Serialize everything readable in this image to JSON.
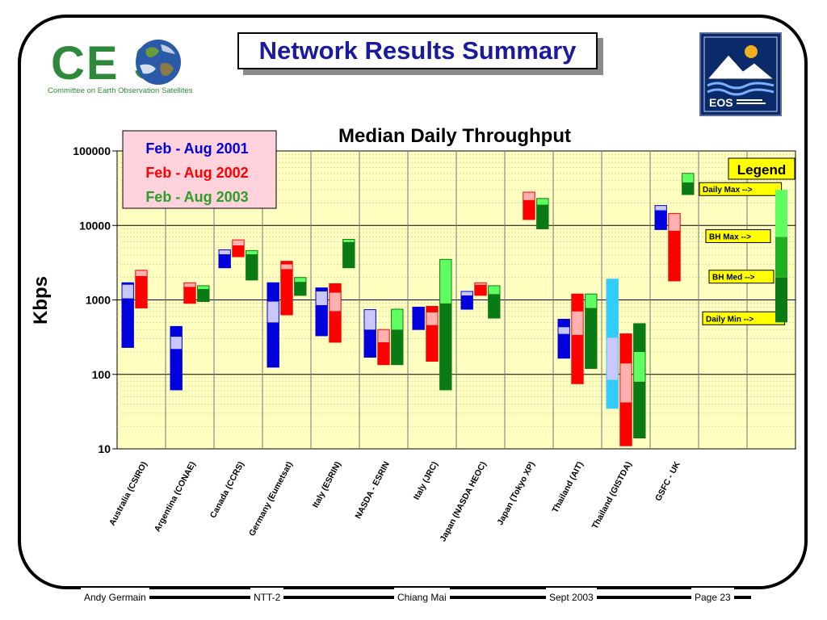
{
  "slide": {
    "title": "Network Results Summary",
    "logo_left_text": "CE   S",
    "logo_left_subtitle": "Committee on Earth Observation Satellites",
    "logo_right_text": "EOS"
  },
  "footer": {
    "author": "Andy Germain",
    "project": "NTT-2",
    "location": "Chiang Mai",
    "date": "Sept 2003",
    "page": "Page 23"
  },
  "colors": {
    "plot_bg": "#ffffc0",
    "blue": "#0000dd",
    "blue_light": "#c8c8ff",
    "red": "#ff0000",
    "red_light": "#ffb0b0",
    "green": "#0a7a14",
    "green_light": "#60ff60",
    "cyan": "#33ccff",
    "legend_box": "#ffff00",
    "dates_box": "#ffd2dc"
  },
  "chart_data": {
    "type": "bar",
    "title": "Median Daily Throughput",
    "ylabel": "Kbps",
    "yscale": "log",
    "ylim": [
      10,
      100000
    ],
    "yticks": [
      "10",
      "100",
      "1000",
      "10000",
      "100000"
    ],
    "grid": true,
    "categories": [
      "Australia (CSIRO)",
      "Argentina (CONAE)",
      "Canada (CCRS)",
      "Germany (Eumetsat)",
      "Italy (ESRIN)",
      "NASDA - ESRIN",
      "Italy (JRC)",
      "Japan (NASDA HEOC)",
      "Japan (Tokyo XP)",
      "Thailand (AIT)",
      "Thailand (GISTDA)",
      "GSFC - UK"
    ],
    "series": [
      {
        "name": "Feb - Aug 2001",
        "color": "#0000dd",
        "boxes": [
          {
            "min": 230,
            "bh_med": 1050,
            "bh_max": 1600,
            "max": 1700
          },
          {
            "min": 62,
            "bh_med": 220,
            "bh_max": 320,
            "max": 440
          },
          {
            "min": 2700,
            "bh_med": 4100,
            "bh_max": 4700,
            "max": 4700
          },
          {
            "min": 125,
            "bh_med": 500,
            "bh_max": 950,
            "max": 1700
          },
          {
            "min": 330,
            "bh_med": 850,
            "bh_max": 1300,
            "max": 1450
          },
          {
            "min": 170,
            "bh_med": 400,
            "bh_max": 740,
            "max": 740
          },
          {
            "min": 400,
            "bh_med": 800,
            "bh_max": 800,
            "max": 800
          },
          {
            "min": 750,
            "bh_med": 1150,
            "bh_max": 1300,
            "max": 1300
          },
          null,
          {
            "min": 165,
            "bh_med": 350,
            "bh_max": 430,
            "max": 550
          },
          {
            "min": 35,
            "bh_med": 85,
            "bh_max": 310,
            "max": 1900,
            "color": "#33ccff"
          },
          {
            "min": 8800,
            "bh_med": 16000,
            "bh_max": 18500,
            "max": 18500
          }
        ]
      },
      {
        "name": "Feb - Aug 2002",
        "color": "#ff0000",
        "boxes": [
          {
            "min": 780,
            "bh_med": 2100,
            "bh_max": 2500,
            "max": 2500
          },
          {
            "min": 900,
            "bh_med": 1500,
            "bh_max": 1700,
            "max": 1700
          },
          {
            "min": 3800,
            "bh_med": 5400,
            "bh_max": 6400,
            "max": 6400
          },
          {
            "min": 630,
            "bh_med": 2600,
            "bh_max": 3000,
            "max": 3300
          },
          {
            "min": 270,
            "bh_med": 710,
            "bh_max": 1250,
            "max": 1650
          },
          {
            "min": 135,
            "bh_med": 270,
            "bh_max": 400,
            "max": 400
          },
          {
            "min": 150,
            "bh_med": 460,
            "bh_max": 680,
            "max": 820
          },
          {
            "min": 1150,
            "bh_med": 1600,
            "bh_max": 1700,
            "max": 1700
          },
          {
            "min": 12000,
            "bh_med": 22000,
            "bh_max": 28000,
            "max": 28000
          },
          {
            "min": 75,
            "bh_med": 340,
            "bh_max": 700,
            "max": 1200
          },
          {
            "min": 11,
            "bh_med": 42,
            "bh_max": 140,
            "max": 350
          },
          {
            "min": 1800,
            "bh_med": 8500,
            "bh_max": 14500,
            "max": 14500
          }
        ]
      },
      {
        "name": "Feb - Aug 2003",
        "color": "#0a7a14",
        "boxes": [
          null,
          {
            "min": 950,
            "bh_med": 1400,
            "bh_max": 1550,
            "max": 1550
          },
          {
            "min": 1850,
            "bh_med": 4100,
            "bh_max": 4600,
            "max": 4600
          },
          {
            "min": 1150,
            "bh_med": 1750,
            "bh_max": 2000,
            "max": 2000
          },
          {
            "min": 2700,
            "bh_med": 6000,
            "bh_max": 6500,
            "max": 6500
          },
          {
            "min": 135,
            "bh_med": 400,
            "bh_max": 750,
            "max": 750
          },
          {
            "min": 62,
            "bh_med": 900,
            "bh_max": 3500,
            "max": 3500
          },
          {
            "min": 570,
            "bh_med": 1200,
            "bh_max": 1550,
            "max": 1550
          },
          {
            "min": 9000,
            "bh_med": 19000,
            "bh_max": 23000,
            "max": 23000
          },
          {
            "min": 120,
            "bh_med": 780,
            "bh_max": 1200,
            "max": 1200
          },
          {
            "min": 14,
            "bh_med": 80,
            "bh_max": 200,
            "max": 480
          },
          {
            "min": 26000,
            "bh_med": 38000,
            "bh_max": 50000,
            "max": 50000
          }
        ]
      }
    ],
    "legend_title": "Legend",
    "legend_labels": [
      "Daily Max -->",
      "BH Max -->",
      "BH Med -->",
      "Daily Min -->"
    ],
    "legend_example": {
      "min": 500,
      "bh_med": 2000,
      "bh_max": 7000,
      "max": 30000
    },
    "legend_placement": "right"
  }
}
